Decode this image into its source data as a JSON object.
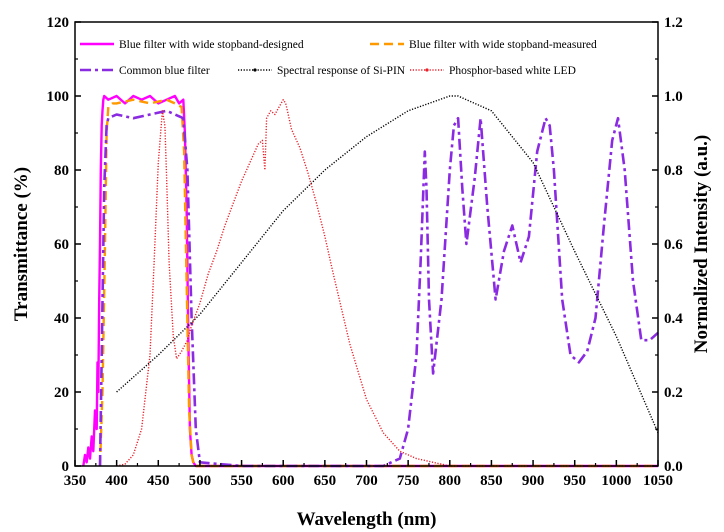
{
  "chart_data": {
    "type": "line",
    "xlabel": "Wavelength (nm)",
    "ylabel": "Transmittance (%)",
    "y2label": "Normalized Intensity (a.u.)",
    "xlim": [
      350,
      1050
    ],
    "ylim": [
      0,
      120
    ],
    "y2lim": [
      0,
      1.2
    ],
    "xticks": [
      "350",
      "400",
      "450",
      "500",
      "550",
      "600",
      "650",
      "700",
      "750",
      "800",
      "850",
      "900",
      "950",
      "1000",
      "1050"
    ],
    "yticks": [
      "0",
      "20",
      "40",
      "60",
      "80",
      "100",
      "120"
    ],
    "y2ticks": [
      "0.0",
      "0.2",
      "0.4",
      "0.6",
      "0.8",
      "1.0",
      "1.2"
    ],
    "legend_position": "top",
    "series": [
      {
        "name": "Blue filter with wide stopband-designed",
        "axis": "left",
        "color": "#ff00ff",
        "dash": "solid",
        "x": [
          360,
          362,
          364,
          366,
          368,
          370,
          372,
          374,
          376,
          377,
          378,
          379,
          380,
          381,
          382,
          383,
          384,
          385,
          390,
          400,
          410,
          420,
          430,
          440,
          450,
          460,
          470,
          475,
          480,
          482,
          484,
          486,
          488,
          490,
          492,
          495,
          500,
          550,
          600,
          700,
          800,
          900,
          1000,
          1050
        ],
        "y": [
          0,
          3,
          1,
          5,
          2,
          8,
          4,
          15,
          10,
          28,
          20,
          45,
          60,
          80,
          92,
          96,
          99,
          100,
          99,
          100,
          98,
          100,
          99,
          100,
          98,
          99,
          100,
          98,
          99,
          90,
          70,
          35,
          10,
          3,
          1,
          0,
          0,
          0,
          0,
          0,
          0,
          0,
          0,
          0
        ]
      },
      {
        "name": "Blue filter with wide stopband-measured",
        "axis": "left",
        "color": "#ff9900",
        "dash": "dash",
        "x": [
          380,
          383,
          386,
          388,
          390,
          395,
          400,
          420,
          440,
          460,
          470,
          478,
          481,
          484,
          487,
          490,
          493,
          500,
          600,
          800,
          1050
        ],
        "y": [
          0,
          20,
          60,
          90,
          97,
          98,
          98,
          99,
          98,
          99,
          98,
          97,
          85,
          50,
          15,
          3,
          0,
          0,
          0,
          0,
          0
        ]
      },
      {
        "name": "Common blue filter",
        "axis": "left",
        "color": "#8a2be2",
        "dash": "dashdot",
        "x": [
          380,
          382,
          385,
          388,
          390,
          400,
          420,
          440,
          460,
          480,
          485,
          490,
          495,
          500,
          550,
          600,
          650,
          700,
          720,
          740,
          750,
          760,
          765,
          770,
          772,
          775,
          780,
          790,
          800,
          805,
          810,
          815,
          820,
          830,
          837,
          845,
          855,
          865,
          875,
          885,
          895,
          905,
          915,
          920,
          925,
          935,
          945,
          955,
          965,
          975,
          985,
          995,
          1002,
          1010,
          1020,
          1030,
          1040,
          1050
        ],
        "y": [
          0,
          30,
          75,
          92,
          94,
          95,
          94,
          95,
          96,
          94,
          80,
          40,
          10,
          1,
          0,
          0,
          0,
          0,
          0,
          2,
          10,
          30,
          55,
          85,
          75,
          45,
          25,
          45,
          80,
          92,
          94,
          75,
          60,
          78,
          94,
          70,
          45,
          58,
          65,
          55,
          62,
          85,
          94,
          92,
          80,
          45,
          30,
          28,
          31,
          40,
          65,
          88,
          94,
          80,
          50,
          34,
          34,
          36
        ]
      },
      {
        "name": "Spectral response of Si-PIN",
        "axis": "right",
        "color": "#000000",
        "dash": "dot",
        "x": [
          400,
          450,
          500,
          550,
          600,
          650,
          700,
          750,
          800,
          810,
          850,
          900,
          950,
          1000,
          1050
        ],
        "y": [
          0.2,
          0.3,
          0.41,
          0.55,
          0.69,
          0.8,
          0.89,
          0.96,
          1.0,
          1.0,
          0.96,
          0.82,
          0.58,
          0.35,
          0.09
        ]
      },
      {
        "name": "Phosphor-based white LED",
        "axis": "right",
        "color": "#e8202a",
        "dash": "dot",
        "x": [
          400,
          410,
          420,
          430,
          440,
          445,
          450,
          455,
          458,
          460,
          463,
          468,
          472,
          478,
          485,
          490,
          495,
          500,
          505,
          510,
          520,
          530,
          540,
          550,
          560,
          570,
          575,
          578,
          580,
          585,
          590,
          595,
          600,
          603,
          605,
          610,
          620,
          630,
          640,
          650,
          660,
          680,
          700,
          720,
          740,
          760,
          780,
          800,
          850,
          900,
          1000,
          1050
        ],
        "y": [
          0.0,
          0.005,
          0.03,
          0.1,
          0.3,
          0.55,
          0.82,
          0.96,
          0.92,
          0.78,
          0.55,
          0.35,
          0.29,
          0.31,
          0.34,
          0.38,
          0.41,
          0.44,
          0.48,
          0.52,
          0.58,
          0.65,
          0.71,
          0.77,
          0.82,
          0.87,
          0.88,
          0.8,
          0.94,
          0.96,
          0.95,
          0.97,
          0.99,
          0.98,
          0.96,
          0.91,
          0.86,
          0.79,
          0.71,
          0.62,
          0.52,
          0.33,
          0.18,
          0.09,
          0.04,
          0.02,
          0.01,
          0.0,
          0.0,
          0.0,
          0.0,
          0.0
        ]
      }
    ]
  }
}
